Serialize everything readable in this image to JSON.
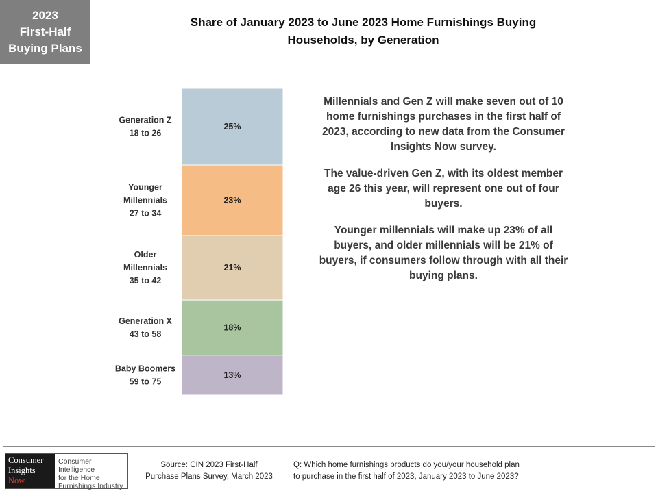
{
  "badge": {
    "lines": [
      "2023",
      "First-Half",
      "Buying Plans"
    ]
  },
  "title_lines": [
    "Share of January  2023 to June 2023 Home Furnishings  Buying",
    "Households,  by Generation"
  ],
  "chart_data": {
    "type": "bar",
    "stacked": true,
    "orientation": "vertical-stack",
    "title": "Share of January 2023 to June 2023 Home Furnishings Buying Households, by Generation",
    "categories": [
      {
        "name": "Generation Z",
        "range": "18 to 26"
      },
      {
        "name": "Younger Millennials",
        "range": "27 to 34"
      },
      {
        "name": "Older Millennials",
        "range": "35 to 42"
      },
      {
        "name": "Generation X",
        "range": "43 to 58"
      },
      {
        "name": "Baby Boomers",
        "range": "59 to 75"
      }
    ],
    "category_labels": [
      [
        "Generation Z",
        "18 to 26"
      ],
      [
        "Younger",
        "Millennials",
        "27 to 34"
      ],
      [
        "Older",
        "Millennials",
        "35 to 42"
      ],
      [
        "Generation X",
        "43 to 58"
      ],
      [
        "Baby Boomers",
        "59 to 75"
      ]
    ],
    "values": [
      25,
      23,
      21,
      18,
      13
    ],
    "value_labels": [
      "25%",
      "23%",
      "21%",
      "18%",
      "13%"
    ],
    "colors": [
      "#b8cbd6",
      "#f5bd85",
      "#e1cdaf",
      "#a8c5a0",
      "#bfb5c9"
    ],
    "unit": "%",
    "legend": "none",
    "grid": false
  },
  "commentary": [
    "Millennials and Gen Z will make seven out of 10 home furnishings purchases in the first half of 2023, according to new data from the Consumer Insights Now survey.",
    "The value-driven Gen Z, with its oldest member age 26 this year, will represent one out of four buyers.",
    "Younger millennials will make up 23% of all buyers, and older millennials will be 21% of buyers, if consumers follow through with all their buying plans."
  ],
  "logo": {
    "left_lines": [
      "Consumer",
      "Insights",
      "Now"
    ],
    "right_lines": [
      "Consumer Intelligence",
      "for the Home",
      "Furnishings Industry"
    ],
    "accent_color": "#e23b2e"
  },
  "source_lines": [
    "Source:  CIN 2023 First-Half",
    "Purchase Plans Survey, March 2023"
  ],
  "question_lines": [
    "Q: Which home furnishings products do you/your household plan",
    "to purchase in the first half of 2023, January 2023 to June 2023?"
  ]
}
